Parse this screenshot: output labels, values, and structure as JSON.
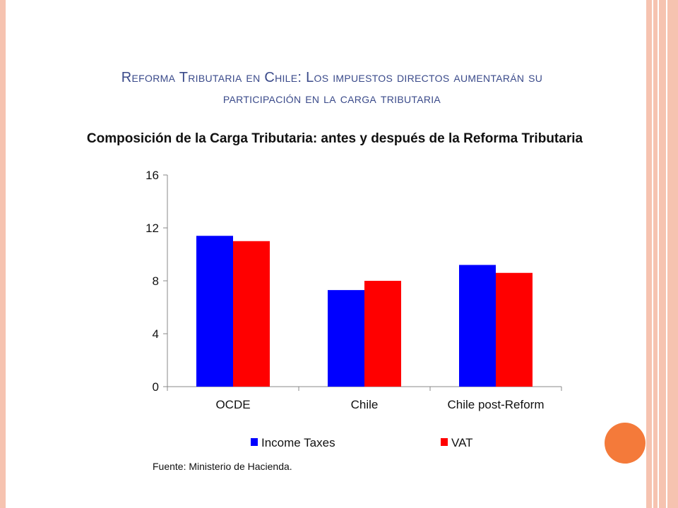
{
  "slide": {
    "title_line1": "Reforma Tributaria en Chile: Los impuestos directos aumentarán su",
    "title_line2": "participación en la carga tributaria",
    "subtitle": "Composición de la Carga Tributaria: antes y después de la Reforma Tributaria",
    "source": "Fuente: Ministerio de Hacienda."
  },
  "colors": {
    "border": "#f6c3b0",
    "title": "#3a4a8a",
    "income_taxes": "#0000ff",
    "vat": "#ff0000",
    "circle": "#f47a3a"
  },
  "chart_data": {
    "type": "bar",
    "categories": [
      "OCDE",
      "Chile",
      "Chile post-Reform"
    ],
    "series": [
      {
        "name": "Income Taxes",
        "values": [
          11.4,
          7.3,
          9.2
        ]
      },
      {
        "name": "VAT",
        "values": [
          11.0,
          8.0,
          8.6
        ]
      }
    ],
    "ylim": [
      0,
      16
    ],
    "yticks": [
      0,
      4,
      8,
      12,
      16
    ],
    "legend_position": "bottom",
    "grid": false
  }
}
